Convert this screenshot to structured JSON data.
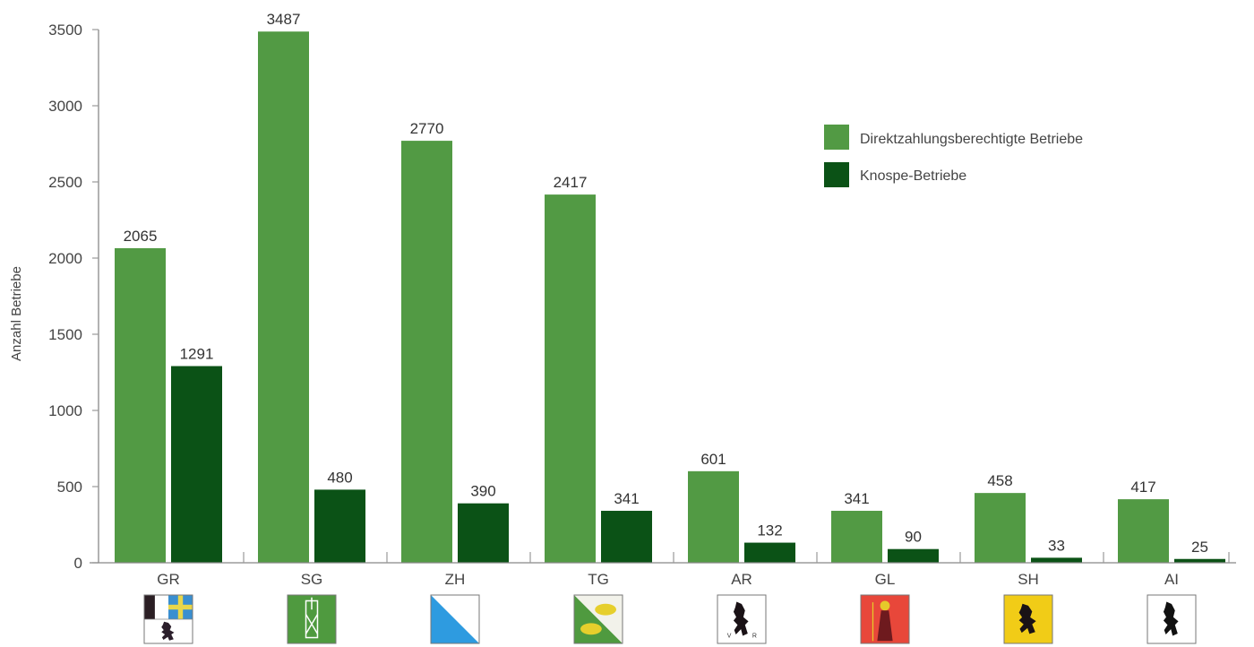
{
  "chart_data": {
    "type": "bar",
    "title": "",
    "xlabel": "",
    "ylabel": "Anzahl Betriebe",
    "ylim": [
      0,
      3500
    ],
    "yticks": [
      0,
      500,
      1000,
      1500,
      2000,
      2500,
      3000,
      3500
    ],
    "grid": false,
    "legend_position": "upper right",
    "categories": [
      "GR",
      "SG",
      "ZH",
      "TG",
      "AR",
      "GL",
      "SH",
      "AI"
    ],
    "series": [
      {
        "name": "Direktzahlungsberechtigte Betriebe",
        "color": "#529a44",
        "values": [
          2065,
          3487,
          2770,
          2417,
          601,
          341,
          458,
          417
        ]
      },
      {
        "name": "Knospe-Betriebe",
        "color": "#0b5216",
        "values": [
          1291,
          480,
          390,
          341,
          132,
          90,
          33,
          25
        ]
      }
    ],
    "category_icons": [
      "graubuenden-coat-of-arms",
      "st-gallen-coat-of-arms",
      "zuerich-coat-of-arms",
      "thurgau-coat-of-arms",
      "appenzell-ausserrhoden-coat-of-arms",
      "glarus-coat-of-arms",
      "schaffhausen-coat-of-arms",
      "appenzell-innerrhoden-coat-of-arms"
    ]
  },
  "legend": {
    "items": [
      {
        "label": "Direktzahlungsberechtigte Betriebe",
        "color": "#529a44"
      },
      {
        "label": "Knospe-Betriebe",
        "color": "#0b5216"
      }
    ]
  },
  "axis": {
    "ylabel": "Anzahl Betriebe"
  },
  "colors": {
    "light_green": "#529a44",
    "dark_green": "#0b5216",
    "axis": "#888888"
  }
}
